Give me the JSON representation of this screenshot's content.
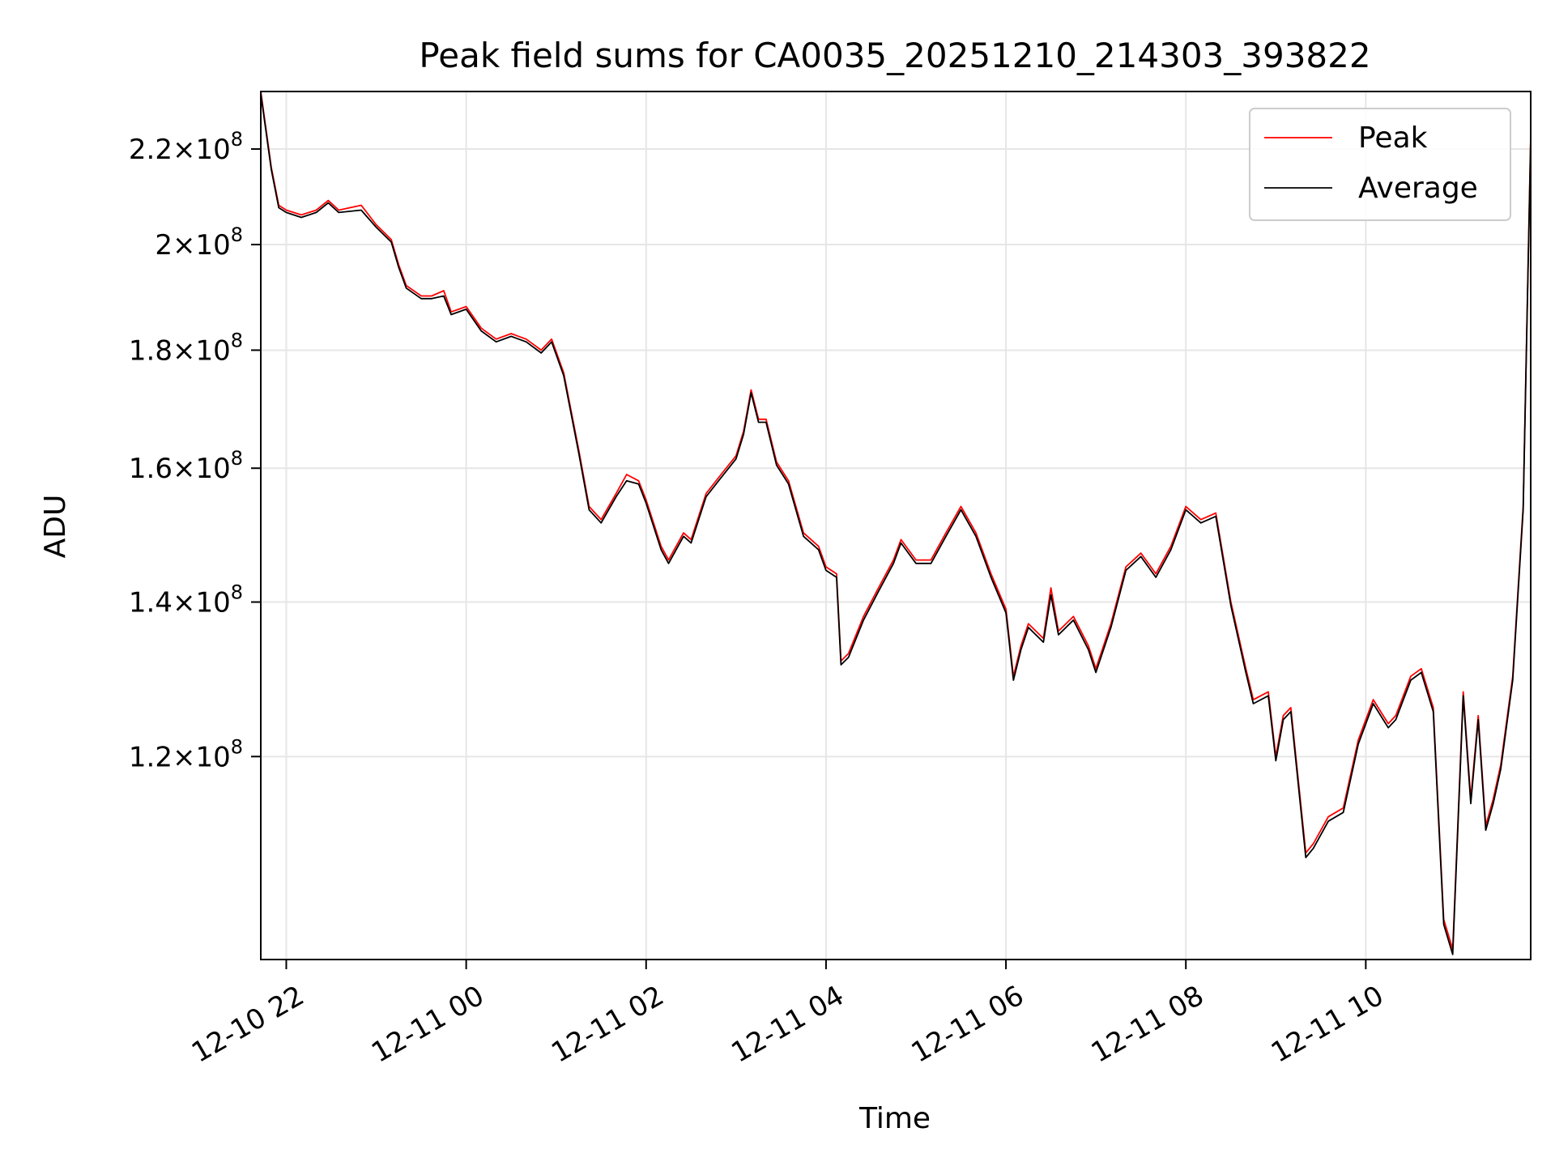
{
  "chart_data": {
    "type": "line",
    "title": "Peak field sums for CA0035_20251210_214303_393822",
    "xlabel": "Time",
    "ylabel": "ADU",
    "y_scale": "log",
    "grid": true,
    "legend_position": "top-right",
    "xlim": [
      "2025-12-10 21:43",
      "2025-12-11 11:50"
    ],
    "ylim": [
      98000000,
      233000000
    ],
    "x_ticks": [
      {
        "value": "2025-12-10 22:00",
        "label": "12-10 22"
      },
      {
        "value": "2025-12-11 00:00",
        "label": "12-11 00"
      },
      {
        "value": "2025-12-11 02:00",
        "label": "12-11 02"
      },
      {
        "value": "2025-12-11 04:00",
        "label": "12-11 04"
      },
      {
        "value": "2025-12-11 06:00",
        "label": "12-11 06"
      },
      {
        "value": "2025-12-11 08:00",
        "label": "12-11 08"
      },
      {
        "value": "2025-12-11 10:00",
        "label": "12-11 10"
      }
    ],
    "y_ticks": [
      {
        "value": 120000000,
        "mantissa": "1.2",
        "exponent": "8"
      },
      {
        "value": 140000000,
        "mantissa": "1.4",
        "exponent": "8"
      },
      {
        "value": 160000000,
        "mantissa": "1.6",
        "exponent": "8"
      },
      {
        "value": 180000000,
        "mantissa": "1.8",
        "exponent": "8"
      },
      {
        "value": 200000000,
        "mantissa": "2",
        "exponent": "8"
      },
      {
        "value": 220000000,
        "mantissa": "2.2",
        "exponent": "8"
      }
    ],
    "series": [
      {
        "name": "Peak",
        "color": "#ff0000",
        "points": [
          [
            "2025-12-10 21:43",
            233000000
          ],
          [
            "2025-12-10 21:50",
            216000000
          ],
          [
            "2025-12-10 21:55",
            208000000
          ],
          [
            "2025-12-10 22:00",
            207000000
          ],
          [
            "2025-12-10 22:10",
            206000000
          ],
          [
            "2025-12-10 22:20",
            207000000
          ],
          [
            "2025-12-10 22:28",
            209000000
          ],
          [
            "2025-12-10 22:35",
            207000000
          ],
          [
            "2025-12-10 22:50",
            208000000
          ],
          [
            "2025-12-10 23:00",
            204000000
          ],
          [
            "2025-12-10 23:10",
            201000000
          ],
          [
            "2025-12-10 23:15",
            196000000
          ],
          [
            "2025-12-10 23:20",
            192000000
          ],
          [
            "2025-12-10 23:30",
            190000000
          ],
          [
            "2025-12-10 23:37",
            190000000
          ],
          [
            "2025-12-10 23:45",
            191000000
          ],
          [
            "2025-12-10 23:50",
            187000000
          ],
          [
            "2025-12-11 00:00",
            188000000
          ],
          [
            "2025-12-11 00:10",
            184000000
          ],
          [
            "2025-12-11 00:20",
            182000000
          ],
          [
            "2025-12-11 00:30",
            183000000
          ],
          [
            "2025-12-11 00:40",
            182000000
          ],
          [
            "2025-12-11 00:50",
            180000000
          ],
          [
            "2025-12-11 00:57",
            182000000
          ],
          [
            "2025-12-11 01:05",
            176000000
          ],
          [
            "2025-12-11 01:15",
            163000000
          ],
          [
            "2025-12-11 01:22",
            154000000
          ],
          [
            "2025-12-11 01:30",
            152000000
          ],
          [
            "2025-12-11 01:40",
            156000000
          ],
          [
            "2025-12-11 01:47",
            159000000
          ],
          [
            "2025-12-11 01:55",
            158000000
          ],
          [
            "2025-12-11 02:00",
            155000000
          ],
          [
            "2025-12-11 02:10",
            148000000
          ],
          [
            "2025-12-11 02:15",
            146000000
          ],
          [
            "2025-12-11 02:25",
            150000000
          ],
          [
            "2025-12-11 02:30",
            149000000
          ],
          [
            "2025-12-11 02:40",
            156000000
          ],
          [
            "2025-12-11 02:50",
            159000000
          ],
          [
            "2025-12-11 03:00",
            162000000
          ],
          [
            "2025-12-11 03:05",
            166000000
          ],
          [
            "2025-12-11 03:10",
            173000000
          ],
          [
            "2025-12-11 03:15",
            168000000
          ],
          [
            "2025-12-11 03:20",
            168000000
          ],
          [
            "2025-12-11 03:27",
            161000000
          ],
          [
            "2025-12-11 03:35",
            158000000
          ],
          [
            "2025-12-11 03:45",
            150000000
          ],
          [
            "2025-12-11 03:55",
            148000000
          ],
          [
            "2025-12-11 04:00",
            145000000
          ],
          [
            "2025-12-11 04:07",
            144000000
          ],
          [
            "2025-12-11 04:10",
            132000000
          ],
          [
            "2025-12-11 04:15",
            133000000
          ],
          [
            "2025-12-11 04:25",
            138000000
          ],
          [
            "2025-12-11 04:35",
            142000000
          ],
          [
            "2025-12-11 04:45",
            146000000
          ],
          [
            "2025-12-11 04:50",
            149000000
          ],
          [
            "2025-12-11 05:00",
            146000000
          ],
          [
            "2025-12-11 05:10",
            146000000
          ],
          [
            "2025-12-11 05:20",
            150000000
          ],
          [
            "2025-12-11 05:30",
            154000000
          ],
          [
            "2025-12-11 05:40",
            150000000
          ],
          [
            "2025-12-11 05:50",
            144000000
          ],
          [
            "2025-12-11 06:00",
            139000000
          ],
          [
            "2025-12-11 06:05",
            130000000
          ],
          [
            "2025-12-11 06:10",
            134000000
          ],
          [
            "2025-12-11 06:15",
            137000000
          ],
          [
            "2025-12-11 06:25",
            135000000
          ],
          [
            "2025-12-11 06:30",
            142000000
          ],
          [
            "2025-12-11 06:35",
            136000000
          ],
          [
            "2025-12-11 06:45",
            138000000
          ],
          [
            "2025-12-11 06:55",
            134000000
          ],
          [
            "2025-12-11 07:00",
            131000000
          ],
          [
            "2025-12-11 07:10",
            137000000
          ],
          [
            "2025-12-11 07:20",
            145000000
          ],
          [
            "2025-12-11 07:30",
            147000000
          ],
          [
            "2025-12-11 07:40",
            144000000
          ],
          [
            "2025-12-11 07:50",
            148000000
          ],
          [
            "2025-12-11 08:00",
            154000000
          ],
          [
            "2025-12-11 08:10",
            152000000
          ],
          [
            "2025-12-11 08:20",
            153000000
          ],
          [
            "2025-12-11 08:30",
            140000000
          ],
          [
            "2025-12-11 08:40",
            131000000
          ],
          [
            "2025-12-11 08:45",
            127000000
          ],
          [
            "2025-12-11 08:55",
            128000000
          ],
          [
            "2025-12-11 09:00",
            120000000
          ],
          [
            "2025-12-11 09:05",
            125000000
          ],
          [
            "2025-12-11 09:10",
            126000000
          ],
          [
            "2025-12-11 09:20",
            109000000
          ],
          [
            "2025-12-11 09:25",
            110000000
          ],
          [
            "2025-12-11 09:35",
            113000000
          ],
          [
            "2025-12-11 09:45",
            114000000
          ],
          [
            "2025-12-11 09:55",
            122000000
          ],
          [
            "2025-12-11 10:05",
            127000000
          ],
          [
            "2025-12-11 10:15",
            124000000
          ],
          [
            "2025-12-11 10:20",
            125000000
          ],
          [
            "2025-12-11 10:30",
            130000000
          ],
          [
            "2025-12-11 10:37",
            131000000
          ],
          [
            "2025-12-11 10:45",
            126000000
          ],
          [
            "2025-12-11 10:52",
            102000000
          ],
          [
            "2025-12-11 10:58",
            99000000
          ],
          [
            "2025-12-11 11:05",
            128000000
          ],
          [
            "2025-12-11 11:10",
            115000000
          ],
          [
            "2025-12-11 11:15",
            125000000
          ],
          [
            "2025-12-11 11:20",
            112000000
          ],
          [
            "2025-12-11 11:25",
            115000000
          ],
          [
            "2025-12-11 11:30",
            119000000
          ],
          [
            "2025-12-11 11:38",
            130000000
          ],
          [
            "2025-12-11 11:45",
            154000000
          ],
          [
            "2025-12-11 11:50",
            223000000
          ]
        ]
      },
      {
        "name": "Average",
        "color": "#000000",
        "points": [
          [
            "2025-12-10 21:43",
            232500000
          ],
          [
            "2025-12-10 21:50",
            215500000
          ],
          [
            "2025-12-10 21:55",
            207500000
          ],
          [
            "2025-12-10 22:00",
            206500000
          ],
          [
            "2025-12-10 22:10",
            205500000
          ],
          [
            "2025-12-10 22:20",
            206500000
          ],
          [
            "2025-12-10 22:28",
            208500000
          ],
          [
            "2025-12-10 22:35",
            206500000
          ],
          [
            "2025-12-10 22:50",
            207000000
          ],
          [
            "2025-12-10 23:00",
            203500000
          ],
          [
            "2025-12-10 23:10",
            200500000
          ],
          [
            "2025-12-10 23:15",
            195500000
          ],
          [
            "2025-12-10 23:20",
            191500000
          ],
          [
            "2025-12-10 23:30",
            189500000
          ],
          [
            "2025-12-10 23:37",
            189500000
          ],
          [
            "2025-12-10 23:45",
            190000000
          ],
          [
            "2025-12-10 23:50",
            186500000
          ],
          [
            "2025-12-11 00:00",
            187500000
          ],
          [
            "2025-12-11 00:10",
            183500000
          ],
          [
            "2025-12-11 00:20",
            181500000
          ],
          [
            "2025-12-11 00:30",
            182500000
          ],
          [
            "2025-12-11 00:40",
            181500000
          ],
          [
            "2025-12-11 00:50",
            179500000
          ],
          [
            "2025-12-11 00:57",
            181500000
          ],
          [
            "2025-12-11 01:05",
            175500000
          ],
          [
            "2025-12-11 01:15",
            162500000
          ],
          [
            "2025-12-11 01:22",
            153500000
          ],
          [
            "2025-12-11 01:30",
            151500000
          ],
          [
            "2025-12-11 01:40",
            155500000
          ],
          [
            "2025-12-11 01:47",
            158000000
          ],
          [
            "2025-12-11 01:55",
            157500000
          ],
          [
            "2025-12-11 02:00",
            154500000
          ],
          [
            "2025-12-11 02:10",
            147500000
          ],
          [
            "2025-12-11 02:15",
            145500000
          ],
          [
            "2025-12-11 02:25",
            149500000
          ],
          [
            "2025-12-11 02:30",
            148500000
          ],
          [
            "2025-12-11 02:40",
            155500000
          ],
          [
            "2025-12-11 02:50",
            158500000
          ],
          [
            "2025-12-11 03:00",
            161500000
          ],
          [
            "2025-12-11 03:05",
            165500000
          ],
          [
            "2025-12-11 03:10",
            172500000
          ],
          [
            "2025-12-11 03:15",
            167500000
          ],
          [
            "2025-12-11 03:20",
            167500000
          ],
          [
            "2025-12-11 03:27",
            160500000
          ],
          [
            "2025-12-11 03:35",
            157500000
          ],
          [
            "2025-12-11 03:45",
            149500000
          ],
          [
            "2025-12-11 03:55",
            147500000
          ],
          [
            "2025-12-11 04:00",
            144500000
          ],
          [
            "2025-12-11 04:07",
            143500000
          ],
          [
            "2025-12-11 04:10",
            131500000
          ],
          [
            "2025-12-11 04:15",
            132500000
          ],
          [
            "2025-12-11 04:25",
            137500000
          ],
          [
            "2025-12-11 04:35",
            141500000
          ],
          [
            "2025-12-11 04:45",
            145500000
          ],
          [
            "2025-12-11 04:50",
            148500000
          ],
          [
            "2025-12-11 05:00",
            145500000
          ],
          [
            "2025-12-11 05:10",
            145500000
          ],
          [
            "2025-12-11 05:20",
            149500000
          ],
          [
            "2025-12-11 05:30",
            153500000
          ],
          [
            "2025-12-11 05:40",
            149500000
          ],
          [
            "2025-12-11 05:50",
            143500000
          ],
          [
            "2025-12-11 06:00",
            138500000
          ],
          [
            "2025-12-11 06:05",
            129500000
          ],
          [
            "2025-12-11 06:10",
            133500000
          ],
          [
            "2025-12-11 06:15",
            136500000
          ],
          [
            "2025-12-11 06:25",
            134500000
          ],
          [
            "2025-12-11 06:30",
            141000000
          ],
          [
            "2025-12-11 06:35",
            135500000
          ],
          [
            "2025-12-11 06:45",
            137500000
          ],
          [
            "2025-12-11 06:55",
            133500000
          ],
          [
            "2025-12-11 07:00",
            130500000
          ],
          [
            "2025-12-11 07:10",
            136500000
          ],
          [
            "2025-12-11 07:20",
            144500000
          ],
          [
            "2025-12-11 07:30",
            146500000
          ],
          [
            "2025-12-11 07:40",
            143500000
          ],
          [
            "2025-12-11 07:50",
            147500000
          ],
          [
            "2025-12-11 08:00",
            153500000
          ],
          [
            "2025-12-11 08:10",
            151500000
          ],
          [
            "2025-12-11 08:20",
            152500000
          ],
          [
            "2025-12-11 08:30",
            139500000
          ],
          [
            "2025-12-11 08:40",
            130500000
          ],
          [
            "2025-12-11 08:45",
            126500000
          ],
          [
            "2025-12-11 08:55",
            127500000
          ],
          [
            "2025-12-11 09:00",
            119500000
          ],
          [
            "2025-12-11 09:05",
            124500000
          ],
          [
            "2025-12-11 09:10",
            125500000
          ],
          [
            "2025-12-11 09:20",
            108500000
          ],
          [
            "2025-12-11 09:25",
            109500000
          ],
          [
            "2025-12-11 09:35",
            112500000
          ],
          [
            "2025-12-11 09:45",
            113500000
          ],
          [
            "2025-12-11 09:55",
            121500000
          ],
          [
            "2025-12-11 10:05",
            126500000
          ],
          [
            "2025-12-11 10:15",
            123500000
          ],
          [
            "2025-12-11 10:20",
            124500000
          ],
          [
            "2025-12-11 10:30",
            129500000
          ],
          [
            "2025-12-11 10:37",
            130500000
          ],
          [
            "2025-12-11 10:45",
            125500000
          ],
          [
            "2025-12-11 10:52",
            101500000
          ],
          [
            "2025-12-11 10:58",
            98500000
          ],
          [
            "2025-12-11 11:05",
            127500000
          ],
          [
            "2025-12-11 11:10",
            114500000
          ],
          [
            "2025-12-11 11:15",
            124500000
          ],
          [
            "2025-12-11 11:20",
            111500000
          ],
          [
            "2025-12-11 11:25",
            114500000
          ],
          [
            "2025-12-11 11:30",
            118500000
          ],
          [
            "2025-12-11 11:38",
            129500000
          ],
          [
            "2025-12-11 11:45",
            153500000
          ],
          [
            "2025-12-11 11:50",
            222000000
          ]
        ]
      }
    ]
  }
}
